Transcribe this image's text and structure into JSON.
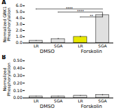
{
  "chart_data": [
    {
      "type": "bar",
      "title": "A",
      "categories": [
        "LR",
        "SGA",
        "LR",
        "SGA"
      ],
      "values": [
        0.35,
        0.65,
        1.0,
        4.5
      ],
      "errors": [
        0.06,
        0.1,
        0.12,
        0.35
      ],
      "colors": [
        "#e0e0e0",
        "#e0e0e0",
        "#e8e800",
        "#e0e0e0"
      ],
      "annotations": [
        "DMSO",
        "Forskolin"
      ],
      "ylabel": "Normalized GRK1\nPhosphorylation",
      "ylim": [
        0,
        6
      ],
      "yticks": [
        0,
        1,
        2,
        3,
        4,
        5,
        6
      ],
      "significance": [
        {
          "x1": 0,
          "x2": 3,
          "y": 5.5,
          "text": "****"
        },
        {
          "x1": 1,
          "x2": 3,
          "y": 5.0,
          "text": "****"
        },
        {
          "x1": 2,
          "x2": 3,
          "y": 4.2,
          "text": "**"
        }
      ]
    },
    {
      "type": "bar",
      "title": "B",
      "categories": [
        "LR",
        "SGA",
        "LR",
        "SGA"
      ],
      "values": [
        0.02,
        0.02,
        0.03,
        0.04
      ],
      "errors": [
        0.005,
        0.005,
        0.005,
        0.008
      ],
      "colors": [
        "#e0e0e0",
        "#e0e0e0",
        "#e0e0e0",
        "#e0e0e0"
      ],
      "annotations": [
        "DMSO",
        "Forskolin"
      ],
      "ylabel": "Normalized\nPhosphorylation",
      "ylim": [
        0,
        0.5
      ],
      "yticks": [
        0,
        0.1,
        0.2,
        0.3,
        0.4,
        0.5
      ]
    }
  ]
}
